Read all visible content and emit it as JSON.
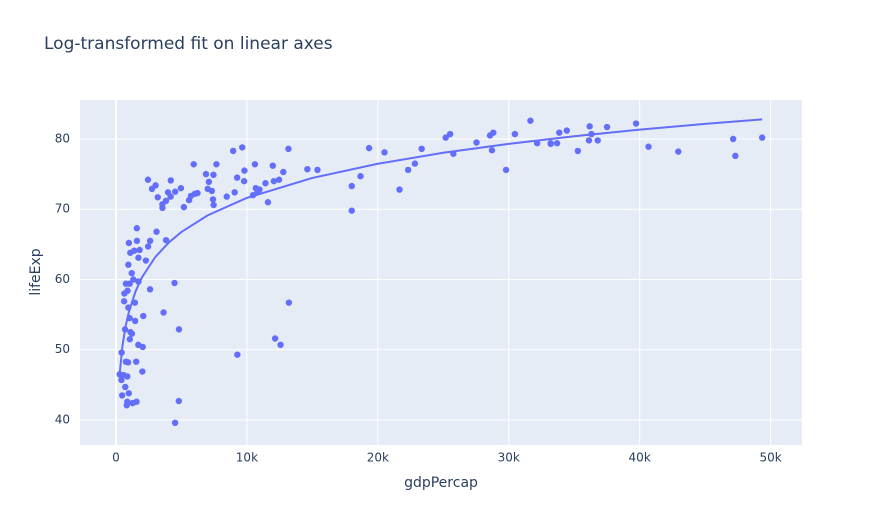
{
  "chart_data": {
    "type": "scatter",
    "title": "Log-transformed fit on linear axes",
    "x_label": "gdpPercap",
    "y_label": "lifeExp",
    "xlim": [
      -2750,
      52400
    ],
    "ylim": [
      36.44,
      85.55
    ],
    "xticks": [
      0,
      {
        "value": 10000,
        "label": "10k"
      },
      {
        "value": 20000,
        "label": "20k"
      },
      {
        "value": 30000,
        "label": "30k"
      },
      {
        "value": 40000,
        "label": "40k"
      },
      {
        "value": 50000,
        "label": "50k"
      }
    ],
    "yticks": [
      40,
      50,
      60,
      70,
      80
    ],
    "grid": true,
    "background": "#e5ecf6",
    "series": [
      {
        "color": "#636efa",
        "mode": "markers",
        "x": [
          975,
          5937,
          6223,
          4797,
          12779,
          34435,
          36126,
          29796,
          1391,
          33693,
          1441,
          3822,
          7446,
          12570,
          9066,
          10681,
          1217,
          430,
          1714,
          2042,
          36319,
          706,
          1704,
          13172,
          4959,
          7007,
          986,
          278,
          3633,
          9645,
          1545,
          14619,
          8948,
          22833,
          35278,
          2082,
          6025,
          6873,
          5581,
          5728,
          12154,
          641,
          691,
          33207,
          30470,
          13206,
          753,
          32170,
          1328,
          27538,
          5186,
          943,
          579,
          1202,
          3548,
          39725,
          18009,
          36181,
          2452,
          3541,
          11606,
          4471,
          40676,
          25523,
          28570,
          7321,
          31656,
          4519,
          1463,
          1593,
          23348,
          47307,
          10461,
          1569,
          415,
          12057,
          1045,
          759,
          12452,
          1043,
          1803,
          10957,
          11978,
          3096,
          9254,
          3820,
          824,
          944,
          4811,
          1091,
          36798,
          25185,
          2749,
          620,
          2014,
          49357,
          22316,
          2606,
          9809,
          4173,
          7409,
          3190,
          15390,
          20510,
          19329,
          7670,
          10808,
          863,
          1598,
          21655,
          1712,
          9787,
          863,
          47143,
          18678,
          25768,
          926,
          9270,
          28821,
          3970,
          2602,
          4513,
          33860,
          37506,
          4185,
          28718,
          1107,
          7458,
          883,
          18009,
          7093,
          8458,
          1056,
          33203,
          42952,
          10611,
          11416,
          2442,
          3025,
          2281,
          1271,
          470
        ],
        "values": [
          43.8,
          76.4,
          72.3,
          42.7,
          75.3,
          81.2,
          79.8,
          75.6,
          64.1,
          79.4,
          56.7,
          65.6,
          74.9,
          50.7,
          72.4,
          73.0,
          52.3,
          49.6,
          59.7,
          50.4,
          80.7,
          44.7,
          50.7,
          78.6,
          73.0,
          72.9,
          65.2,
          46.5,
          55.3,
          78.8,
          48.3,
          75.7,
          78.3,
          76.5,
          78.3,
          54.8,
          72.2,
          75.0,
          71.3,
          71.9,
          51.6,
          58.0,
          52.9,
          79.3,
          80.7,
          56.7,
          59.4,
          79.4,
          60.0,
          79.5,
          70.3,
          56.0,
          46.4,
          60.9,
          70.2,
          82.2,
          73.3,
          81.8,
          64.7,
          70.7,
          71.0,
          59.5,
          78.9,
          80.7,
          80.5,
          72.6,
          82.6,
          72.5,
          54.1,
          67.3,
          78.6,
          77.6,
          72.0,
          42.6,
          45.7,
          74.0,
          59.4,
          48.3,
          74.2,
          54.5,
          64.2,
          72.8,
          76.2,
          66.8,
          74.5,
          71.2,
          42.1,
          62.1,
          52.9,
          63.8,
          79.8,
          80.2,
          72.9,
          56.9,
          46.9,
          80.2,
          75.6,
          65.5,
          75.5,
          71.8,
          71.4,
          71.7,
          75.6,
          78.1,
          78.7,
          76.4,
          72.5,
          46.2,
          65.5,
          72.8,
          63.1,
          74.0,
          42.6,
          80.0,
          74.7,
          77.9,
          48.2,
          49.3,
          80.9,
          72.4,
          58.6,
          39.6,
          80.9,
          81.7,
          74.1,
          78.4,
          52.5,
          70.6,
          58.4,
          69.8,
          73.9,
          71.8,
          51.5,
          79.4,
          78.2,
          76.4,
          73.7,
          74.2,
          73.4,
          62.7,
          42.4,
          43.5
        ]
      },
      {
        "color": "#636efa",
        "mode": "lines",
        "x": [
          278,
          500,
          750,
          1000,
          1500,
          2000,
          3000,
          4000,
          5000,
          7000,
          10000,
          15000,
          20000,
          25000,
          30000,
          35000,
          40000,
          45000,
          49357
        ],
        "values": [
          46.54,
          50.65,
          53.49,
          55.5,
          58.34,
          60.36,
          63.19,
          65.21,
          66.77,
          69.13,
          71.62,
          74.46,
          76.47,
          78.04,
          79.31,
          80.39,
          81.33,
          82.15,
          82.8
        ]
      }
    ]
  }
}
